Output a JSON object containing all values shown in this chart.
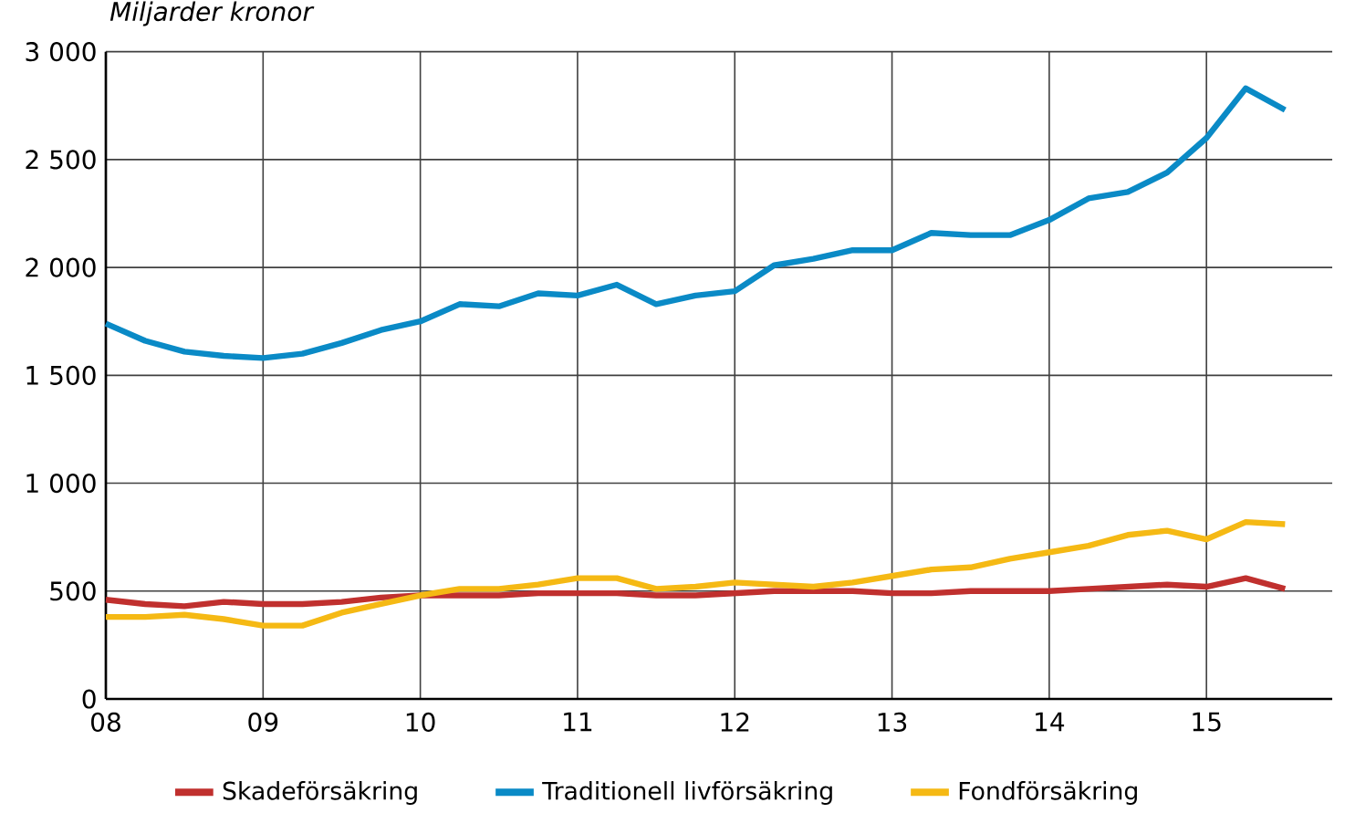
{
  "chart_data": {
    "type": "line",
    "ylabel": "Miljarder kronor",
    "x": [
      2008,
      2008.25,
      2008.5,
      2008.75,
      2009,
      2009.25,
      2009.5,
      2009.75,
      2010,
      2010.25,
      2010.5,
      2010.75,
      2011,
      2011.25,
      2011.5,
      2011.75,
      2012,
      2012.25,
      2012.5,
      2012.75,
      2013,
      2013.25,
      2013.5,
      2013.75,
      2014,
      2014.25,
      2014.5,
      2014.75,
      2015,
      2015.25,
      2015.5
    ],
    "series": [
      {
        "name": "Skadeförsäkring",
        "color": "#c0302e",
        "values": [
          460,
          440,
          430,
          450,
          440,
          440,
          450,
          470,
          480,
          480,
          480,
          490,
          490,
          490,
          480,
          480,
          490,
          500,
          500,
          500,
          490,
          490,
          500,
          500,
          500,
          510,
          520,
          530,
          520,
          560,
          510
        ]
      },
      {
        "name": "Traditionell livförsäkring",
        "color": "#0a8ac6",
        "values": [
          1740,
          1660,
          1610,
          1590,
          1580,
          1600,
          1650,
          1710,
          1750,
          1830,
          1820,
          1880,
          1870,
          1920,
          1830,
          1870,
          1890,
          2010,
          2040,
          2080,
          2080,
          2160,
          2150,
          2150,
          2220,
          2320,
          2350,
          2440,
          2600,
          2830,
          2730
        ]
      },
      {
        "name": "Fondförsäkring",
        "color": "#f5b914",
        "values": [
          380,
          380,
          390,
          370,
          340,
          340,
          400,
          440,
          480,
          510,
          510,
          530,
          560,
          560,
          510,
          520,
          540,
          530,
          520,
          540,
          570,
          600,
          610,
          650,
          680,
          710,
          760,
          780,
          740,
          820,
          810
        ]
      }
    ],
    "xlim": [
      2008,
      2015.8
    ],
    "xticks": [
      {
        "value": 2008,
        "label": "08"
      },
      {
        "value": 2009,
        "label": "09"
      },
      {
        "value": 2010,
        "label": "10"
      },
      {
        "value": 2011,
        "label": "11"
      },
      {
        "value": 2012,
        "label": "12"
      },
      {
        "value": 2013,
        "label": "13"
      },
      {
        "value": 2014,
        "label": "14"
      },
      {
        "value": 2015,
        "label": "15"
      }
    ],
    "ylim": [
      0,
      3000
    ],
    "yticks": [
      0,
      500,
      {
        "value": 1000,
        "label": "1 000"
      },
      {
        "value": 1500,
        "label": "1 500"
      },
      {
        "value": 2000,
        "label": "2 000"
      },
      {
        "value": 2500,
        "label": "2 500"
      },
      {
        "value": 3000,
        "label": "3 000"
      }
    ],
    "grid": true,
    "legend": "bottom",
    "marker": "none",
    "line_style": "solid"
  }
}
